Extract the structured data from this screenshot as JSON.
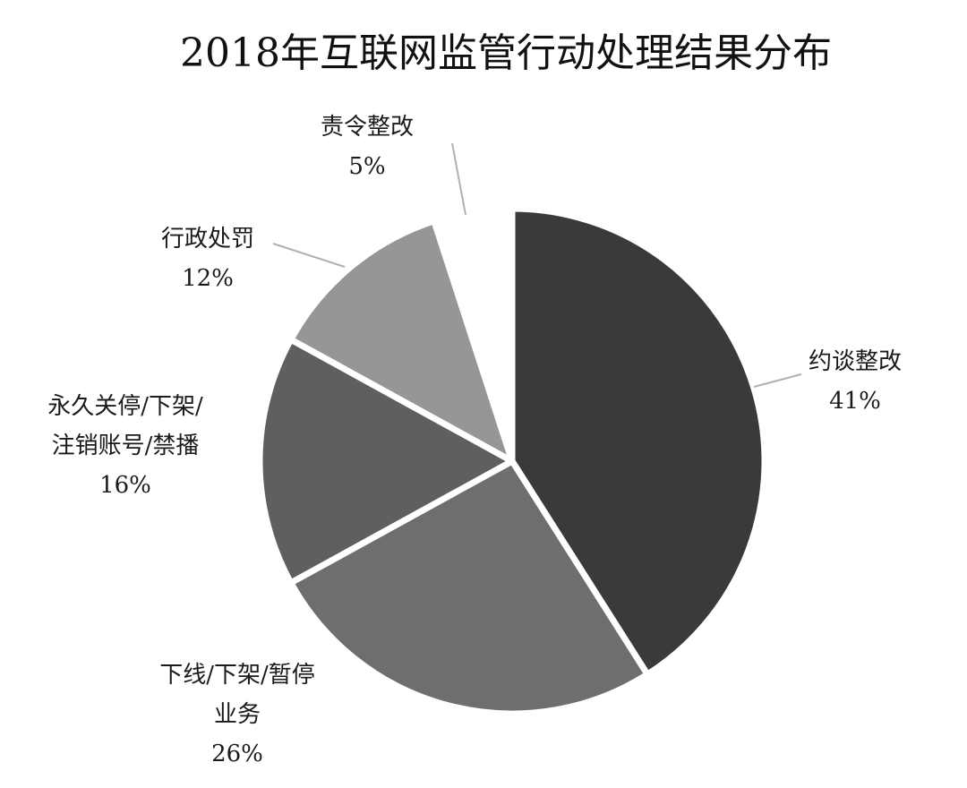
{
  "chart_data": {
    "type": "pie",
    "title": "2018年互联网监管行动处理结果分布",
    "start_angle_deg": 0,
    "direction": "clockwise",
    "slices": [
      {
        "label_lines": [
          "约谈整改"
        ],
        "value": 41,
        "value_label": "41%",
        "color": "#3a3a3a"
      },
      {
        "label_lines": [
          "下线/下架/暂停",
          "业务"
        ],
        "value": 26,
        "value_label": "26%",
        "color": "#6e6e6e"
      },
      {
        "label_lines": [
          "永久关停/下架/",
          "注销账号/禁播"
        ],
        "value": 16,
        "value_label": "16%",
        "color": "#5f5f5f"
      },
      {
        "label_lines": [
          "行政处罚"
        ],
        "value": 12,
        "value_label": "12%",
        "color": "#969696"
      },
      {
        "label_lines": [
          "责令整改"
        ],
        "value": 5,
        "value_label": "5%",
        "color": "#ffffff"
      }
    ]
  }
}
